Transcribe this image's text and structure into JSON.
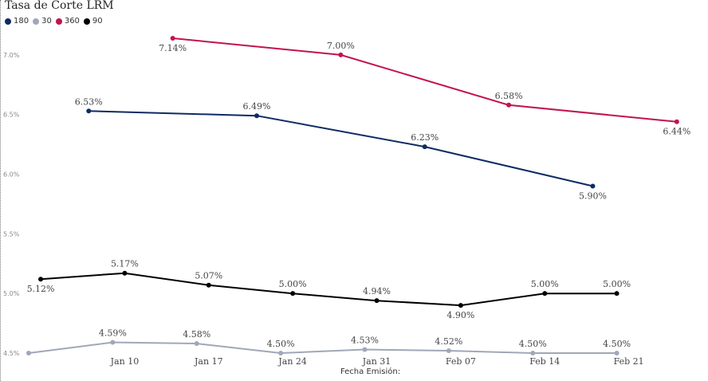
{
  "chart_data": {
    "type": "line",
    "title": "Tasa de Corte LRM",
    "xlabel": "Fecha Emisión:",
    "ylabel": "",
    "ylim": [
      4.5,
      7.2
    ],
    "yticks": [
      {
        "value": 4.5,
        "label": "4.5%"
      },
      {
        "value": 5.0,
        "label": "5.0%"
      },
      {
        "value": 5.5,
        "label": "5.5%"
      },
      {
        "value": 6.0,
        "label": "6.0%"
      },
      {
        "value": 6.5,
        "label": "6.5%"
      },
      {
        "value": 7.0,
        "label": "7.0%"
      }
    ],
    "xlim": [
      "2024-01-02",
      "2024-02-28"
    ],
    "xticks": [
      {
        "date": "2024-01-10",
        "label": "Jan 10"
      },
      {
        "date": "2024-01-17",
        "label": "Jan 17"
      },
      {
        "date": "2024-01-24",
        "label": "Jan 24"
      },
      {
        "date": "2024-01-31",
        "label": "Jan 31"
      },
      {
        "date": "2024-02-07",
        "label": "Feb 07"
      },
      {
        "date": "2024-02-14",
        "label": "Feb 14"
      },
      {
        "date": "2024-02-21",
        "label": "Feb 21"
      }
    ],
    "grid": false,
    "legend": "top-left",
    "series": [
      {
        "name": "180",
        "color": "#0d2b63",
        "points": [
          {
            "x": "2024-01-07",
            "y": 6.53,
            "label": "6.53%",
            "pos": "above"
          },
          {
            "x": "2024-01-21",
            "y": 6.49,
            "label": "6.49%",
            "pos": "above"
          },
          {
            "x": "2024-02-04",
            "y": 6.23,
            "label": "6.23%",
            "pos": "above"
          },
          {
            "x": "2024-02-18",
            "y": 5.9,
            "label": "5.90%",
            "pos": "below"
          }
        ]
      },
      {
        "name": "30",
        "color": "#a0a7b8",
        "points": [
          {
            "x": "2024-01-02",
            "y": 4.5,
            "label": "",
            "pos": "above"
          },
          {
            "x": "2024-01-09",
            "y": 4.59,
            "label": "4.59%",
            "pos": "above"
          },
          {
            "x": "2024-01-16",
            "y": 4.58,
            "label": "4.58%",
            "pos": "above"
          },
          {
            "x": "2024-01-23",
            "y": 4.5,
            "label": "4.50%",
            "pos": "above"
          },
          {
            "x": "2024-01-30",
            "y": 4.53,
            "label": "4.53%",
            "pos": "above"
          },
          {
            "x": "2024-02-06",
            "y": 4.52,
            "label": "4.52%",
            "pos": "above"
          },
          {
            "x": "2024-02-13",
            "y": 4.5,
            "label": "4.50%",
            "pos": "above"
          },
          {
            "x": "2024-02-20",
            "y": 4.5,
            "label": "4.50%",
            "pos": "above"
          }
        ]
      },
      {
        "name": "360",
        "color": "#c2134e",
        "points": [
          {
            "x": "2024-01-14",
            "y": 7.14,
            "label": "7.14%",
            "pos": "below"
          },
          {
            "x": "2024-01-28",
            "y": 7.0,
            "label": "7.00%",
            "pos": "above"
          },
          {
            "x": "2024-02-11",
            "y": 6.58,
            "label": "6.58%",
            "pos": "above"
          },
          {
            "x": "2024-02-25",
            "y": 6.44,
            "label": "6.44%",
            "pos": "below"
          }
        ]
      },
      {
        "name": "90",
        "color": "#000000",
        "points": [
          {
            "x": "2024-01-03",
            "y": 5.12,
            "label": "5.12%",
            "pos": "below"
          },
          {
            "x": "2024-01-10",
            "y": 5.17,
            "label": "5.17%",
            "pos": "above"
          },
          {
            "x": "2024-01-17",
            "y": 5.07,
            "label": "5.07%",
            "pos": "above"
          },
          {
            "x": "2024-01-24",
            "y": 5.0,
            "label": "5.00%",
            "pos": "above"
          },
          {
            "x": "2024-01-31",
            "y": 4.94,
            "label": "4.94%",
            "pos": "above"
          },
          {
            "x": "2024-02-07",
            "y": 4.9,
            "label": "4.90%",
            "pos": "below"
          },
          {
            "x": "2024-02-14",
            "y": 5.0,
            "label": "5.00%",
            "pos": "above"
          },
          {
            "x": "2024-02-20",
            "y": 5.0,
            "label": "5.00%",
            "pos": "above"
          }
        ]
      }
    ]
  }
}
